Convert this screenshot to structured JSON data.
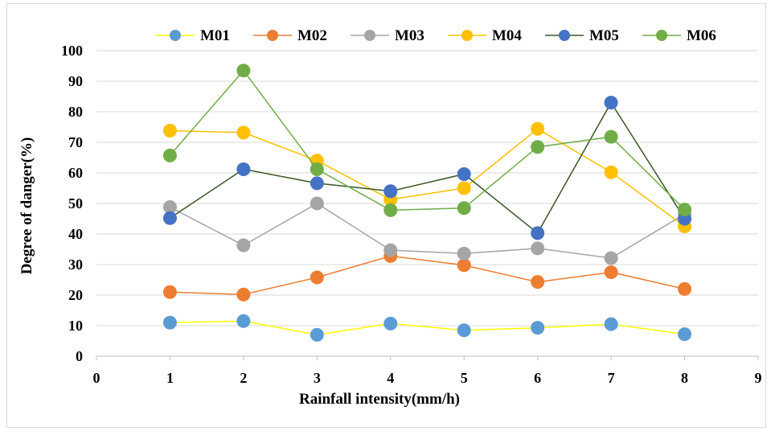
{
  "chart_data": {
    "type": "line",
    "title": "",
    "xlabel": "Rainfall intensity(mm/h)",
    "ylabel": "Degree of danger(%)",
    "xlim": [
      0,
      9
    ],
    "ylim": [
      0,
      100
    ],
    "x_ticks": [
      "0",
      "1",
      "2",
      "3",
      "4",
      "5",
      "6",
      "7",
      "8",
      "9"
    ],
    "y_ticks": [
      "0",
      "10",
      "20",
      "30",
      "40",
      "50",
      "60",
      "70",
      "80",
      "90",
      "100"
    ],
    "grid": "horizontal",
    "legend_position": "top",
    "x": [
      1,
      2,
      3,
      4,
      5,
      6,
      7,
      8
    ],
    "series": [
      {
        "name": "M01",
        "line_color": "#ffff00",
        "marker_color": "#5b9bd5",
        "values": [
          11,
          11.5,
          7,
          10.7,
          8.5,
          9.3,
          10.5,
          7.2
        ]
      },
      {
        "name": "M02",
        "line_color": "#ed7d31",
        "marker_color": "#ed7d31",
        "values": [
          21,
          20.2,
          25.8,
          32.8,
          29.8,
          24.3,
          27.5,
          22
        ]
      },
      {
        "name": "M03",
        "line_color": "#a5a5a5",
        "marker_color": "#a5a5a5",
        "values": [
          48.8,
          36.3,
          50,
          34.7,
          33.6,
          35.3,
          32.1,
          46.5
        ]
      },
      {
        "name": "M04",
        "line_color": "#ffc000",
        "marker_color": "#ffc000",
        "values": [
          73.8,
          73.2,
          64,
          51.3,
          55,
          74.4,
          60.2,
          42.5
        ]
      },
      {
        "name": "M05",
        "line_color": "#264478",
        "marker_color": "#4472c4",
        "line_color_alt": "#375623",
        "values": [
          45.2,
          61.2,
          56.6,
          54,
          59.6,
          40.3,
          83,
          45
        ]
      },
      {
        "name": "M06",
        "line_color": "#70ad47",
        "marker_color": "#70ad47",
        "values": [
          65.7,
          93.5,
          61.2,
          47.8,
          48.5,
          68.5,
          71.8,
          48
        ]
      }
    ]
  }
}
